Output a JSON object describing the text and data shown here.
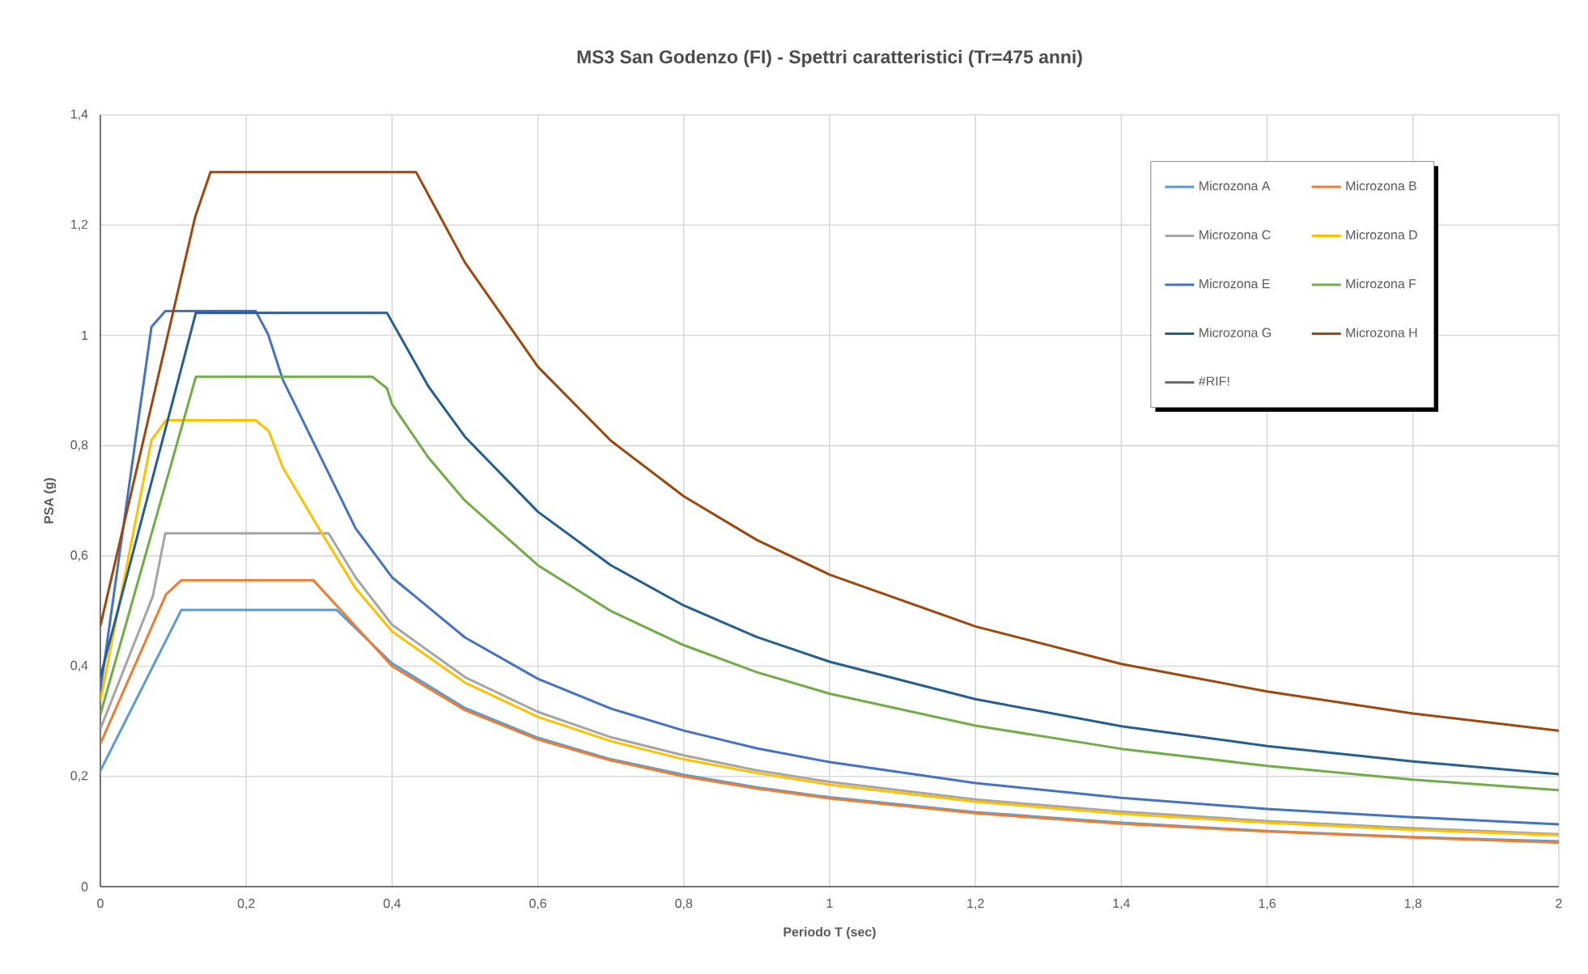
{
  "chart_data": {
    "type": "line",
    "title": "MS3 San Godenzo (FI) - Spettri caratteristici (Tr=475 anni)",
    "xlabel": "Periodo T (sec)",
    "ylabel": "PSA (g)",
    "xlim": [
      0,
      2
    ],
    "ylim": [
      0,
      1.4
    ],
    "xticks": [
      0,
      {
        "value": 0.2,
        "label": "0,2"
      },
      {
        "value": 0.4,
        "label": "0,4"
      },
      {
        "value": 0.6,
        "label": "0,6"
      },
      {
        "value": 0.8,
        "label": "0,8"
      },
      1,
      {
        "value": 1.2,
        "label": "1,2"
      },
      {
        "value": 1.4,
        "label": "1,4"
      },
      {
        "value": 1.6,
        "label": "1,6"
      },
      {
        "value": 1.8,
        "label": "1,8"
      },
      2
    ],
    "yticks": [
      0,
      {
        "value": 0.2,
        "label": "0,2"
      },
      {
        "value": 0.4,
        "label": "0,4"
      },
      {
        "value": 0.6,
        "label": "0,6"
      },
      {
        "value": 0.8,
        "label": "0,8"
      },
      1,
      {
        "value": 1.2,
        "label": "1,2"
      },
      {
        "value": 1.4,
        "label": "1,4"
      }
    ],
    "grid": true,
    "legend": "top right",
    "marker": "none",
    "line_style": "solid",
    "series": [
      {
        "name": "Microzona A",
        "color": "#5b9bd5",
        "x": [
          0,
          0.111,
          0.324,
          0.4,
          0.5,
          0.6,
          0.7,
          0.8,
          0.9,
          1,
          1.2,
          1.4,
          1.6,
          1.8,
          2
        ],
        "values": [
          0.21,
          0.502,
          0.502,
          0.405,
          0.324,
          0.27,
          0.231,
          0.203,
          0.18,
          0.162,
          0.135,
          0.116,
          0.101,
          0.09,
          0.082
        ]
      },
      {
        "name": "Microzona B",
        "color": "#ed7d31",
        "x": [
          0,
          0.09,
          0.111,
          0.292,
          0.4,
          0.5,
          0.6,
          0.7,
          0.8,
          0.9,
          1,
          1.2,
          1.4,
          1.6,
          1.8,
          2
        ],
        "values": [
          0.259,
          0.53,
          0.556,
          0.556,
          0.4,
          0.32,
          0.267,
          0.229,
          0.2,
          0.178,
          0.16,
          0.133,
          0.114,
          0.1,
          0.089,
          0.08
        ]
      },
      {
        "name": "Microzona C",
        "color": "#a5a5a5",
        "x": [
          0,
          0.072,
          0.089,
          0.313,
          0.35,
          0.4,
          0.5,
          0.6,
          0.7,
          0.8,
          0.9,
          1,
          1.2,
          1.4,
          1.6,
          1.8,
          2
        ],
        "values": [
          0.286,
          0.527,
          0.641,
          0.641,
          0.561,
          0.475,
          0.38,
          0.317,
          0.271,
          0.238,
          0.211,
          0.19,
          0.158,
          0.136,
          0.119,
          0.106,
          0.095
        ]
      },
      {
        "name": "Microzona D",
        "color": "#ffc000",
        "x": [
          0,
          0.07,
          0.09,
          0.213,
          0.231,
          0.25,
          0.3,
          0.35,
          0.4,
          0.5,
          0.6,
          0.7,
          0.8,
          0.9,
          1,
          1.2,
          1.4,
          1.6,
          1.8,
          2
        ],
        "values": [
          0.337,
          0.81,
          0.846,
          0.846,
          0.826,
          0.761,
          0.649,
          0.541,
          0.463,
          0.37,
          0.308,
          0.264,
          0.231,
          0.206,
          0.185,
          0.154,
          0.132,
          0.116,
          0.103,
          0.093
        ]
      },
      {
        "name": "Microzona E",
        "color": "#4472c4",
        "x": [
          0,
          0.07,
          0.089,
          0.213,
          0.23,
          0.25,
          0.3,
          0.35,
          0.4,
          0.5,
          0.6,
          0.7,
          0.8,
          0.9,
          1,
          1.2,
          1.4,
          1.6,
          1.8,
          2
        ],
        "values": [
          0.356,
          1.015,
          1.044,
          1.044,
          1.002,
          0.92,
          0.785,
          0.65,
          0.561,
          0.452,
          0.377,
          0.323,
          0.283,
          0.251,
          0.226,
          0.188,
          0.161,
          0.141,
          0.126,
          0.113
        ]
      },
      {
        "name": "Microzona F",
        "color": "#70ad47",
        "x": [
          0,
          0.131,
          0.373,
          0.393,
          0.4,
          0.45,
          0.5,
          0.6,
          0.7,
          0.8,
          0.9,
          1,
          1.2,
          1.4,
          1.6,
          1.8,
          2
        ],
        "values": [
          0.312,
          0.925,
          0.925,
          0.904,
          0.875,
          0.778,
          0.7,
          0.583,
          0.5,
          0.438,
          0.389,
          0.35,
          0.292,
          0.25,
          0.219,
          0.194,
          0.175
        ]
      },
      {
        "name": "Microzona G",
        "color": "#255e91",
        "x": [
          0,
          0.131,
          0.393,
          0.45,
          0.5,
          0.6,
          0.7,
          0.8,
          0.9,
          1,
          1.2,
          1.4,
          1.6,
          1.8,
          2
        ],
        "values": [
          0.38,
          1.041,
          1.041,
          0.907,
          0.816,
          0.68,
          0.583,
          0.51,
          0.453,
          0.408,
          0.34,
          0.291,
          0.255,
          0.227,
          0.204
        ]
      },
      {
        "name": "Microzona H",
        "color": "#9e480e",
        "x": [
          0,
          0.13,
          0.151,
          0.433,
          0.5,
          0.6,
          0.7,
          0.8,
          0.9,
          1,
          1.2,
          1.4,
          1.6,
          1.8,
          2
        ],
        "values": [
          0.473,
          1.215,
          1.296,
          1.296,
          1.132,
          0.943,
          0.809,
          0.708,
          0.629,
          0.566,
          0.472,
          0.404,
          0.354,
          0.314,
          0.283
        ]
      },
      {
        "name": "#RIF!",
        "color": "#636363"
      }
    ]
  }
}
